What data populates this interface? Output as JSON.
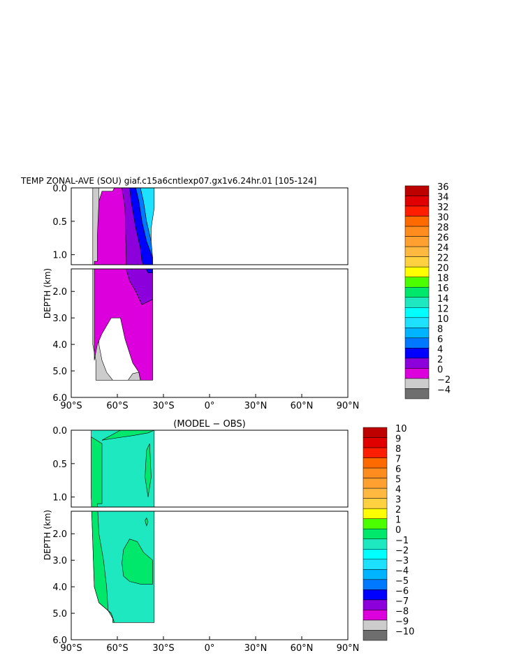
{
  "chart_data": [
    {
      "type": "heatmap",
      "title": "TEMP ZONAL-AVE (SOU) giaf.c15a6cntlexp07.gx1v6.24hr.01 [105-124]",
      "ylabel": "DEPTH (km)",
      "xlabel": "",
      "x_ticks": [
        "90°S",
        "60°S",
        "30°S",
        "0°",
        "30°N",
        "60°N",
        "90°N"
      ],
      "x_range": [
        -90,
        90
      ],
      "y_ticks_upper": [
        "0.0",
        "0.5",
        "1.0"
      ],
      "y_ticks_lower": [
        "2.0",
        "3.0",
        "4.0",
        "5.0",
        "6.0"
      ],
      "y_range": [
        0,
        6
      ],
      "colorbar_labels": [
        "36",
        "34",
        "32",
        "30",
        "28",
        "26",
        "24",
        "22",
        "20",
        "18",
        "16",
        "14",
        "12",
        "10",
        "8",
        "6",
        "4",
        "2",
        "0",
        "−2",
        "−4"
      ],
      "colorbar_colors": [
        "#bd0000",
        "#e00000",
        "#ff1e00",
        "#ff6a00",
        "#ff8c1e",
        "#ffa030",
        "#ffb840",
        "#ffd040",
        "#ffff00",
        "#4cff00",
        "#00e86c",
        "#1ee8c0",
        "#00ffff",
        "#1ee0ff",
        "#00b4ff",
        "#0078ff",
        "#0000ff",
        "#8c00dc",
        "#dc00dc",
        "#cccccc",
        "#6e6e6e"
      ],
      "series": [
        {
          "name": "-2",
          "region": [
            [
              -76,
              0.0
            ],
            [
              -72,
              0.0
            ],
            [
              -72,
              4.0
            ],
            [
              -70,
              4.6
            ],
            [
              -67,
              5.05
            ],
            [
              -63,
              5.35
            ],
            [
              -53,
              5.35
            ],
            [
              -50,
              5.1
            ],
            [
              -46,
              5.05
            ],
            [
              -45,
              5.35
            ],
            [
              -74,
              5.35
            ],
            [
              -74,
              4.6
            ],
            [
              -76,
              4.0
            ]
          ]
        },
        {
          "name": "0",
          "region": [
            [
              -70,
              0.05
            ],
            [
              -63,
              0.05
            ],
            [
              -62,
              0.0
            ],
            [
              -57,
              0.0
            ],
            [
              -55,
              0.3
            ],
            [
              -54,
              1.2
            ],
            [
              -52,
              1.6
            ],
            [
              -48,
              2.0
            ],
            [
              -44,
              2.5
            ],
            [
              -37,
              2.3
            ],
            [
              -37,
              5.35
            ],
            [
              -45,
              5.35
            ],
            [
              -46,
              5.05
            ],
            [
              -50,
              4.7
            ],
            [
              -55,
              3.8
            ],
            [
              -58,
              3.0
            ],
            [
              -64,
              3.0
            ],
            [
              -70,
              3.6
            ],
            [
              -73,
              4.0
            ],
            [
              -75,
              4.6
            ],
            [
              -75,
              1.1
            ],
            [
              -73,
              1.1
            ],
            [
              -73,
              0.7
            ],
            [
              -72,
              0.2
            ]
          ]
        },
        {
          "name": "2",
          "region": [
            [
              -57,
              0.0
            ],
            [
              -52,
              0.0
            ],
            [
              -51,
              0.2
            ],
            [
              -48,
              0.6
            ],
            [
              -45,
              0.9
            ],
            [
              -44,
              1.1
            ],
            [
              -40,
              1.3
            ],
            [
              -37,
              1.3
            ],
            [
              -37,
              2.3
            ],
            [
              -44,
              2.5
            ],
            [
              -48,
              2.0
            ],
            [
              -52,
              1.6
            ],
            [
              -54,
              1.2
            ],
            [
              -55,
              0.3
            ]
          ]
        },
        {
          "name": "4",
          "region": [
            [
              -52,
              0.0
            ],
            [
              -48,
              0.0
            ],
            [
              -46,
              0.2
            ],
            [
              -44,
              0.5
            ],
            [
              -41,
              0.8
            ],
            [
              -37,
              1.05
            ],
            [
              -37,
              1.3
            ],
            [
              -40,
              1.3
            ],
            [
              -44,
              1.1
            ],
            [
              -45,
              0.9
            ],
            [
              -48,
              0.6
            ],
            [
              -51,
              0.2
            ]
          ]
        },
        {
          "name": "6",
          "region": [
            [
              -48,
              0.0
            ],
            [
              -45,
              0.0
            ],
            [
              -43,
              0.2
            ],
            [
              -41,
              0.5
            ],
            [
              -38,
              0.8
            ],
            [
              -37,
              1.05
            ],
            [
              -41,
              0.8
            ],
            [
              -44,
              0.5
            ],
            [
              -46,
              0.2
            ]
          ]
        },
        {
          "name": "8-16",
          "region": [
            [
              -45,
              0.0
            ],
            [
              -36,
              0.0
            ],
            [
              -36,
              0.3
            ],
            [
              -38,
              0.6
            ],
            [
              -38,
              0.8
            ],
            [
              -41,
              0.5
            ],
            [
              -43,
              0.2
            ]
          ]
        }
      ]
    },
    {
      "type": "heatmap",
      "title": "(MODEL − OBS)",
      "ylabel": "DEPTH (km)",
      "xlabel": "",
      "x_ticks": [
        "90°S",
        "60°S",
        "30°S",
        "0°",
        "30°N",
        "60°N",
        "90°N"
      ],
      "x_range": [
        -90,
        90
      ],
      "y_ticks_upper": [
        "0.0",
        "0.5",
        "1.0"
      ],
      "y_ticks_lower": [
        "2.0",
        "3.0",
        "4.0",
        "5.0",
        "6.0"
      ],
      "y_range": [
        0,
        6
      ],
      "colorbar_labels": [
        "10",
        "9",
        "8",
        "7",
        "6",
        "5",
        "4",
        "3",
        "2",
        "1",
        "0",
        "−1",
        "−2",
        "−3",
        "−4",
        "−5",
        "−6",
        "−7",
        "−8",
        "−9",
        "−10"
      ],
      "colorbar_colors": [
        "#bd0000",
        "#e00000",
        "#ff1e00",
        "#ff6a00",
        "#ff8c1e",
        "#ffa030",
        "#ffb840",
        "#ffd040",
        "#ffff00",
        "#4cff00",
        "#00e86c",
        "#1ee8c0",
        "#00ffff",
        "#1ee0ff",
        "#00b4ff",
        "#0078ff",
        "#0000ff",
        "#8c00dc",
        "#dc00dc",
        "#cccccc",
        "#6e6e6e"
      ],
      "series": [
        {
          "name": "-1 to 0",
          "region": [
            [
              -77,
              0.0
            ],
            [
              -36,
              0.0
            ],
            [
              -36,
              5.35
            ],
            [
              -41,
              5.35
            ],
            [
              -62,
              5.35
            ],
            [
              -64,
              5.0
            ],
            [
              -72,
              4.6
            ],
            [
              -75,
              4.0
            ],
            [
              -77,
              1.0
            ]
          ]
        },
        {
          "name": "0 to 1",
          "region": [
            [
              -77,
              0.1
            ],
            [
              -70,
              0.2
            ],
            [
              -70,
              1.1
            ],
            [
              -73,
              1.1
            ],
            [
              -72,
              2.0
            ],
            [
              -69,
              3.0
            ],
            [
              -67,
              4.0
            ],
            [
              -66,
              4.9
            ],
            [
              -63,
              5.2
            ],
            [
              -63,
              5.35
            ],
            [
              -62,
              5.35
            ],
            [
              -64,
              5.0
            ],
            [
              -72,
              4.6
            ],
            [
              -75,
              4.0
            ],
            [
              -77,
              1.0
            ]
          ]
        },
        {
          "name": "0 to 1 mid",
          "region": [
            [
              -58,
              0.0
            ],
            [
              -70,
              0.15
            ],
            [
              -62,
              0.12
            ],
            [
              -50,
              0.08
            ],
            [
              -40,
              0.04
            ],
            [
              -36,
              0.0
            ]
          ]
        },
        {
          "name": "0 to 1 blob",
          "region": [
            [
              -57,
              3.1
            ],
            [
              -56,
              2.6
            ],
            [
              -52,
              2.2
            ],
            [
              -47,
              2.3
            ],
            [
              -43,
              2.7
            ],
            [
              -37,
              3.0
            ],
            [
              -37,
              3.9
            ],
            [
              -45,
              3.9
            ],
            [
              -52,
              3.8
            ],
            [
              -56,
              3.6
            ]
          ]
        },
        {
          "name": "0 to 1 patch",
          "region": [
            [
              -42,
              0.7
            ],
            [
              -41,
              0.3
            ],
            [
              -39,
              0.2
            ],
            [
              -38,
              0.7
            ],
            [
              -40,
              1.0
            ]
          ]
        },
        {
          "name": "0 to 1 dot",
          "region": [
            [
              -42,
              1.5
            ],
            [
              -41,
              1.4
            ],
            [
              -40,
              1.55
            ],
            [
              -41,
              1.7
            ]
          ]
        }
      ]
    }
  ],
  "panels": [
    {
      "title": "TEMP ZONAL-AVE (SOU) giaf.c15a6cntlexp07.gx1v6.24hr.01 [105-124]",
      "ylabel": "DEPTH (km)"
    },
    {
      "title": "(MODEL − OBS)",
      "ylabel": "DEPTH (km)"
    }
  ]
}
